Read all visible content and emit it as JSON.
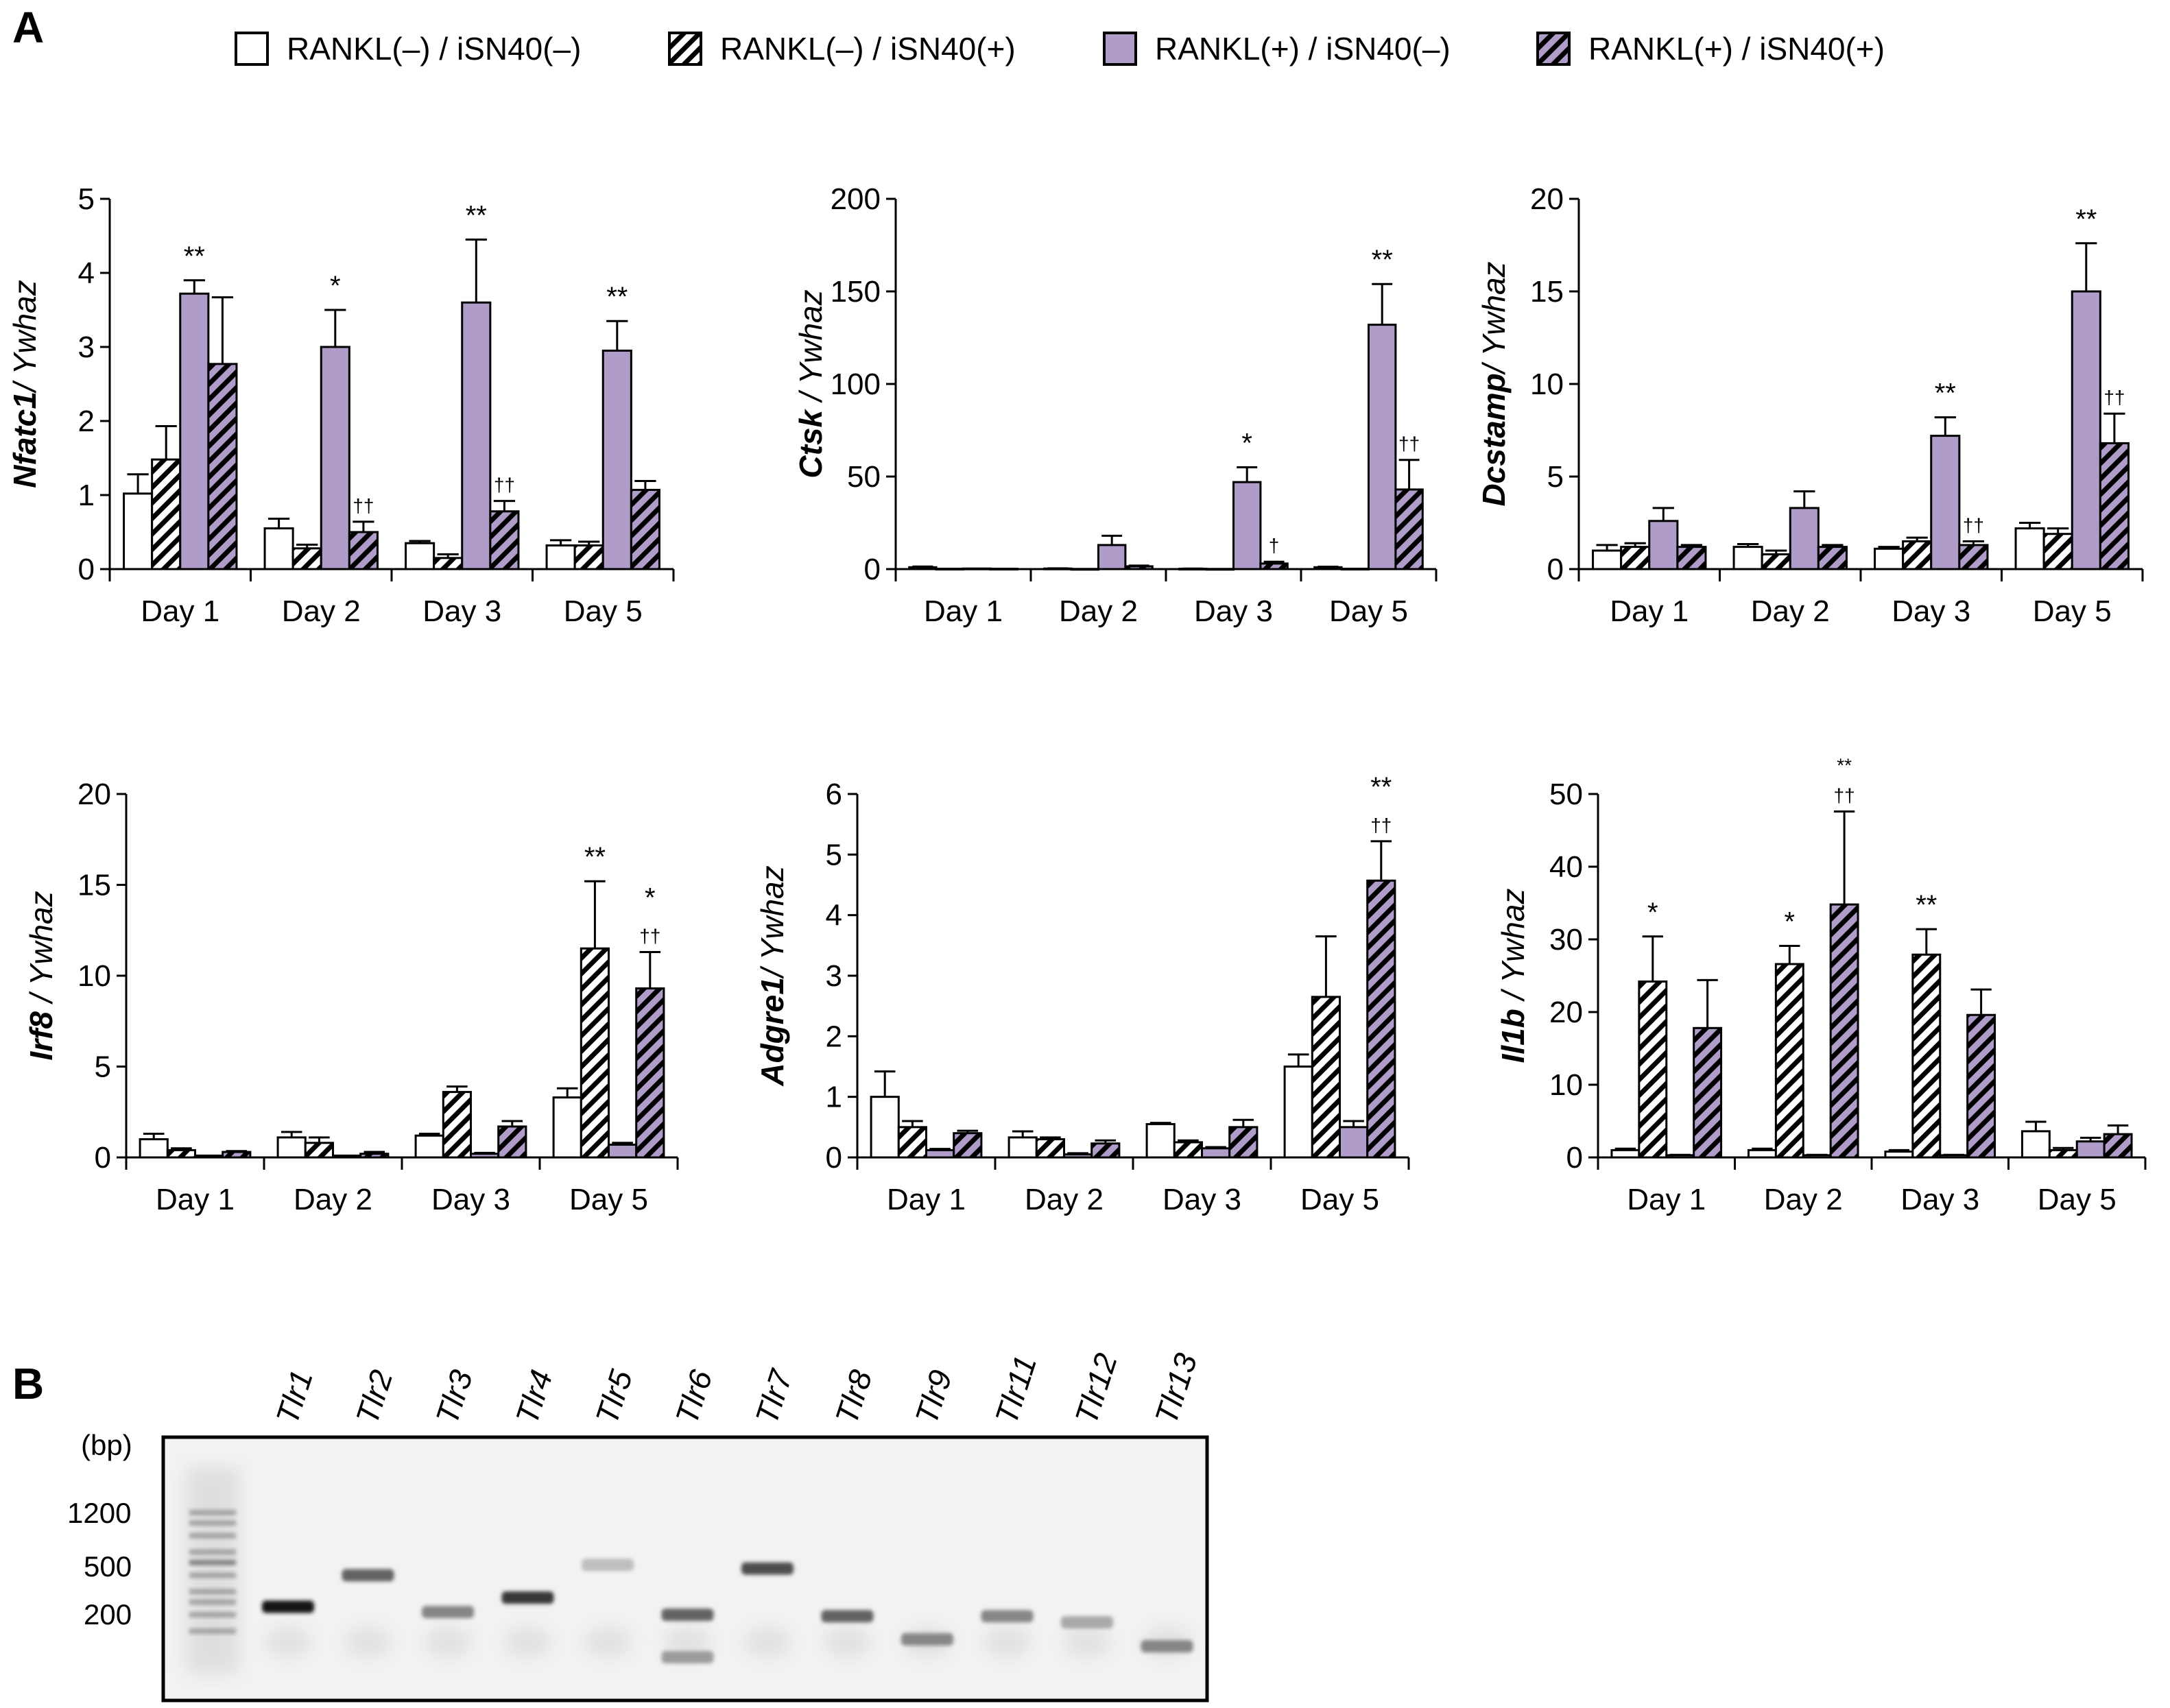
{
  "figure": {
    "panel_a_label": "A",
    "panel_b_label": "B"
  },
  "legend": [
    {
      "label": "RANKL(–) / iSN40(–)",
      "fill": "#ffffff",
      "hatch": false
    },
    {
      "label": "RANKL(–) / iSN40(+)",
      "fill": "#ffffff",
      "hatch": true
    },
    {
      "label": "RANKL(+) / iSN40(–)",
      "fill": "#b09cc8",
      "hatch": false
    },
    {
      "label": "RANKL(+) / iSN40(+)",
      "fill": "#b09cc8",
      "hatch": true
    }
  ],
  "colors": {
    "purple": "#b09cc8",
    "white": "#ffffff",
    "stroke": "#000000"
  },
  "chart_data": [
    {
      "type": "bar",
      "gene": "Nfatc1",
      "ylabel_suffix": "/ Ywhaz",
      "categories": [
        "Day 1",
        "Day 2",
        "Day 3",
        "Day 5"
      ],
      "ylim": [
        0,
        5
      ],
      "yticks": [
        "0",
        "1",
        "2",
        "3",
        "4",
        "5"
      ],
      "series": [
        {
          "name": "RANKL(–) / iSN40(–)",
          "values": [
            1.02,
            0.55,
            0.35,
            0.32
          ],
          "errors": [
            0.26,
            0.13,
            0.03,
            0.07
          ]
        },
        {
          "name": "RANKL(–) / iSN40(+)",
          "values": [
            1.48,
            0.28,
            0.15,
            0.32
          ],
          "errors": [
            0.45,
            0.05,
            0.05,
            0.05
          ]
        },
        {
          "name": "RANKL(+) / iSN40(–)",
          "values": [
            3.72,
            3.0,
            3.6,
            2.95
          ],
          "errors": [
            0.18,
            0.5,
            0.85,
            0.4
          ]
        },
        {
          "name": "RANKL(+) / iSN40(+)",
          "values": [
            2.77,
            0.5,
            0.78,
            1.07
          ],
          "errors": [
            0.9,
            0.14,
            0.14,
            0.12
          ]
        }
      ],
      "annotations": [
        {
          "text": "**",
          "category": 0,
          "series": 2,
          "size": "normal"
        },
        {
          "text": "*",
          "category": 1,
          "series": 2,
          "size": "normal"
        },
        {
          "text": "††",
          "category": 1,
          "series": 3,
          "size": "small"
        },
        {
          "text": "**",
          "category": 2,
          "series": 2,
          "size": "normal"
        },
        {
          "text": "††",
          "category": 2,
          "series": 3,
          "size": "small"
        },
        {
          "text": "**",
          "category": 3,
          "series": 2,
          "size": "normal"
        }
      ]
    },
    {
      "type": "bar",
      "gene": "Ctsk",
      "ylabel_suffix": " / Ywhaz",
      "categories": [
        "Day 1",
        "Day 2",
        "Day 3",
        "Day 5"
      ],
      "ylim": [
        0,
        200
      ],
      "yticks": [
        "0",
        "50",
        "100",
        "150",
        "200"
      ],
      "series": [
        {
          "name": "RANKL(–) / iSN40(–)",
          "values": [
            1.0,
            0.3,
            0.2,
            1.0
          ],
          "errors": [
            0.4,
            0.1,
            0.1,
            0.3
          ]
        },
        {
          "name": "RANKL(–) / iSN40(+)",
          "values": [
            0.2,
            0.1,
            0.1,
            0.2
          ],
          "errors": [
            0.0,
            0.0,
            0.0,
            0.0
          ]
        },
        {
          "name": "RANKL(+) / iSN40(–)",
          "values": [
            0.3,
            13.0,
            47.0,
            132.0
          ],
          "errors": [
            0.0,
            5.0,
            8.0,
            22.0
          ]
        },
        {
          "name": "RANKL(+) / iSN40(+)",
          "values": [
            0.2,
            1.5,
            3.0,
            43.0
          ],
          "errors": [
            0.0,
            0.4,
            1.0,
            16.0
          ]
        }
      ],
      "annotations": [
        {
          "text": "*",
          "category": 2,
          "series": 2,
          "size": "normal"
        },
        {
          "text": "†",
          "category": 2,
          "series": 3,
          "size": "small"
        },
        {
          "text": "**",
          "category": 3,
          "series": 2,
          "size": "normal"
        },
        {
          "text": "††",
          "category": 3,
          "series": 3,
          "size": "small"
        }
      ]
    },
    {
      "type": "bar",
      "gene": "Dcstamp",
      "ylabel_suffix": "/ Ywhaz",
      "categories": [
        "Day 1",
        "Day 2",
        "Day 3",
        "Day 5"
      ],
      "ylim": [
        0,
        20
      ],
      "yticks": [
        "0",
        "5",
        "10",
        "15",
        "20"
      ],
      "series": [
        {
          "name": "RANKL(–) / iSN40(–)",
          "values": [
            1.0,
            1.2,
            1.1,
            2.2
          ],
          "errors": [
            0.3,
            0.15,
            0.1,
            0.3
          ]
        },
        {
          "name": "RANKL(–) / iSN40(+)",
          "values": [
            1.2,
            0.8,
            1.5,
            1.9
          ],
          "errors": [
            0.2,
            0.2,
            0.2,
            0.3
          ]
        },
        {
          "name": "RANKL(+) / iSN40(–)",
          "values": [
            2.6,
            3.3,
            7.2,
            15.0
          ],
          "errors": [
            0.7,
            0.9,
            1.0,
            2.6
          ]
        },
        {
          "name": "RANKL(+) / iSN40(+)",
          "values": [
            1.2,
            1.2,
            1.3,
            6.8
          ],
          "errors": [
            0.1,
            0.1,
            0.2,
            1.6
          ]
        }
      ],
      "annotations": [
        {
          "text": "**",
          "category": 2,
          "series": 2,
          "size": "normal"
        },
        {
          "text": "††",
          "category": 2,
          "series": 3,
          "size": "small"
        },
        {
          "text": "**",
          "category": 3,
          "series": 2,
          "size": "normal"
        },
        {
          "text": "††",
          "category": 3,
          "series": 3,
          "size": "small"
        }
      ]
    },
    {
      "type": "bar",
      "gene": "Irf8",
      "ylabel_suffix": " / Ywhaz",
      "categories": [
        "Day 1",
        "Day 2",
        "Day 3",
        "Day 5"
      ],
      "ylim": [
        0,
        20
      ],
      "yticks": [
        "0",
        "5",
        "10",
        "15",
        "20"
      ],
      "series": [
        {
          "name": "RANKL(–) / iSN40(–)",
          "values": [
            1.0,
            1.1,
            1.2,
            3.3
          ],
          "errors": [
            0.3,
            0.3,
            0.1,
            0.5
          ]
        },
        {
          "name": "RANKL(–) / iSN40(+)",
          "values": [
            0.4,
            0.8,
            3.6,
            11.5
          ],
          "errors": [
            0.1,
            0.3,
            0.3,
            3.7
          ]
        },
        {
          "name": "RANKL(+) / iSN40(–)",
          "values": [
            0.1,
            0.1,
            0.2,
            0.7
          ],
          "errors": [
            0.0,
            0.0,
            0.05,
            0.1
          ]
        },
        {
          "name": "RANKL(+) / iSN40(+)",
          "values": [
            0.3,
            0.2,
            1.7,
            9.3
          ],
          "errors": [
            0.05,
            0.1,
            0.3,
            2.0
          ]
        }
      ],
      "annotations": [
        {
          "text": "**",
          "category": 3,
          "series": 1,
          "size": "normal"
        },
        {
          "text": "*",
          "category": 3,
          "series": 3,
          "size": "normal",
          "stack": 1
        },
        {
          "text": "††",
          "category": 3,
          "series": 3,
          "size": "small"
        }
      ]
    },
    {
      "type": "bar",
      "gene": "Adgre1",
      "ylabel_suffix": "/ Ywhaz",
      "categories": [
        "Day 1",
        "Day 2",
        "Day 3",
        "Day 5"
      ],
      "ylim": [
        0,
        6
      ],
      "yticks": [
        "0",
        "1",
        "2",
        "3",
        "4",
        "5",
        "6"
      ],
      "series": [
        {
          "name": "RANKL(–) / iSN40(–)",
          "values": [
            1.0,
            0.33,
            0.55,
            1.5
          ],
          "errors": [
            0.42,
            0.1,
            0.02,
            0.2
          ]
        },
        {
          "name": "RANKL(–) / iSN40(+)",
          "values": [
            0.5,
            0.3,
            0.25,
            2.65
          ],
          "errors": [
            0.1,
            0.03,
            0.03,
            1.0
          ]
        },
        {
          "name": "RANKL(+) / iSN40(–)",
          "values": [
            0.12,
            0.05,
            0.15,
            0.5
          ],
          "errors": [
            0.02,
            0.02,
            0.02,
            0.1
          ]
        },
        {
          "name": "RANKL(+) / iSN40(+)",
          "values": [
            0.4,
            0.23,
            0.5,
            4.57
          ],
          "errors": [
            0.04,
            0.05,
            0.12,
            0.65
          ]
        }
      ],
      "annotations": [
        {
          "text": "**",
          "category": 3,
          "series": 3,
          "size": "normal",
          "stack": 1
        },
        {
          "text": "††",
          "category": 3,
          "series": 3,
          "size": "small"
        }
      ]
    },
    {
      "type": "bar",
      "gene": "Il1b",
      "ylabel_suffix": " / Ywhaz",
      "categories": [
        "Day 1",
        "Day 2",
        "Day 3",
        "Day 5"
      ],
      "ylim": [
        0,
        50
      ],
      "yticks": [
        "0",
        "10",
        "20",
        "30",
        "40",
        "50"
      ],
      "series": [
        {
          "name": "RANKL(–) / iSN40(–)",
          "values": [
            1.0,
            1.0,
            0.8,
            3.6
          ],
          "errors": [
            0.2,
            0.2,
            0.2,
            1.3
          ]
        },
        {
          "name": "RANKL(–) / iSN40(+)",
          "values": [
            24.2,
            26.6,
            27.9,
            1.0
          ],
          "errors": [
            6.2,
            2.5,
            3.5,
            0.3
          ]
        },
        {
          "name": "RANKL(+) / iSN40(–)",
          "values": [
            0.3,
            0.3,
            0.3,
            2.2
          ],
          "errors": [
            0.05,
            0.05,
            0.05,
            0.5
          ]
        },
        {
          "name": "RANKL(+) / iSN40(+)",
          "values": [
            17.8,
            34.8,
            19.6,
            3.2
          ],
          "errors": [
            6.6,
            12.8,
            3.5,
            1.2
          ]
        }
      ],
      "annotations": [
        {
          "text": "*",
          "category": 0,
          "series": 1,
          "size": "normal"
        },
        {
          "text": "*",
          "category": 1,
          "series": 1,
          "size": "normal"
        },
        {
          "text": "**",
          "category": 1,
          "series": 3,
          "size": "small",
          "stack": 1
        },
        {
          "text": "††",
          "category": 1,
          "series": 3,
          "size": "small"
        },
        {
          "text": "**",
          "category": 2,
          "series": 1,
          "size": "normal"
        }
      ]
    }
  ],
  "gel": {
    "unit_label": "(bp)",
    "size_markers": [
      "1200",
      "500",
      "200"
    ],
    "lanes": [
      {
        "label": "Tlr1",
        "bands": [
          {
            "bp": 230,
            "intensity": 0.95
          }
        ]
      },
      {
        "label": "Tlr2",
        "bands": [
          {
            "bp": 400,
            "intensity": 0.6
          }
        ]
      },
      {
        "label": "Tlr3",
        "bands": [
          {
            "bp": 210,
            "intensity": 0.45
          }
        ]
      },
      {
        "label": "Tlr4",
        "bands": [
          {
            "bp": 270,
            "intensity": 0.8
          }
        ]
      },
      {
        "label": "Tlr5",
        "bands": [
          {
            "bp": 480,
            "intensity": 0.2
          }
        ]
      },
      {
        "label": "Tlr6",
        "bands": [
          {
            "bp": 200,
            "intensity": 0.6
          },
          {
            "bp": 95,
            "intensity": 0.35
          }
        ]
      },
      {
        "label": "Tlr7",
        "bands": [
          {
            "bp": 450,
            "intensity": 0.7
          }
        ]
      },
      {
        "label": "Tlr8",
        "bands": [
          {
            "bp": 195,
            "intensity": 0.6
          }
        ]
      },
      {
        "label": "Tlr9",
        "bands": [
          {
            "bp": 130,
            "intensity": 0.45
          }
        ]
      },
      {
        "label": "Tlr11",
        "bands": [
          {
            "bp": 195,
            "intensity": 0.45
          }
        ]
      },
      {
        "label": "Tlr12",
        "bands": [
          {
            "bp": 175,
            "intensity": 0.3
          }
        ]
      },
      {
        "label": "Tlr13",
        "bands": [
          {
            "bp": 115,
            "intensity": 0.45
          }
        ]
      }
    ]
  }
}
